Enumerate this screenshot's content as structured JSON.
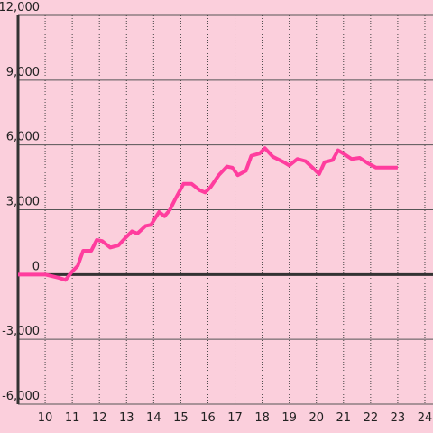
{
  "chart_data": {
    "type": "line",
    "x": [
      9,
      10,
      10.5,
      10.75,
      11,
      11.2,
      11.4,
      11.7,
      11.9,
      12.1,
      12.4,
      12.7,
      13,
      13.2,
      13.4,
      13.7,
      13.9,
      14.2,
      14.4,
      14.6,
      14.8,
      15.1,
      15.4,
      15.7,
      15.9,
      16.1,
      16.4,
      16.7,
      16.9,
      17.1,
      17.4,
      17.6,
      17.9,
      18.1,
      18.4,
      18.8,
      19,
      19.3,
      19.6,
      19.9,
      20.1,
      20.3,
      20.6,
      20.8,
      21,
      21.3,
      21.6,
      21.9,
      22.2,
      22.5,
      22.8,
      23
    ],
    "series": [
      {
        "color": "#ff3d9e",
        "values": [
          0,
          0,
          -150,
          -250,
          150,
          400,
          1100,
          1100,
          1600,
          1550,
          1250,
          1350,
          1750,
          2000,
          1900,
          2250,
          2300,
          2900,
          2700,
          3000,
          3500,
          4200,
          4200,
          3900,
          3800,
          4050,
          4600,
          5000,
          4950,
          4600,
          4800,
          5500,
          5600,
          5850,
          5450,
          5200,
          5050,
          5350,
          5250,
          4900,
          4650,
          5200,
          5300,
          5750,
          5600,
          5350,
          5400,
          5150,
          4950,
          4950,
          4950,
          4950
        ]
      }
    ],
    "xlim": [
      9,
      24.3
    ],
    "ylim": [
      -6000,
      12000
    ],
    "xticks": [
      10,
      11,
      12,
      13,
      14,
      15,
      16,
      17,
      18,
      19,
      20,
      21,
      22,
      23,
      24
    ],
    "yticks": [
      {
        "value": -6000,
        "label": "-6,000"
      },
      {
        "value": -3000,
        "label": "-3,000"
      },
      0,
      {
        "value": 3000,
        "label": "3,000"
      },
      {
        "value": 6000,
        "label": "6,000"
      },
      {
        "value": 9000,
        "label": "9,000"
      },
      {
        "value": 12000,
        "label": "12,000"
      }
    ],
    "grid": true
  }
}
